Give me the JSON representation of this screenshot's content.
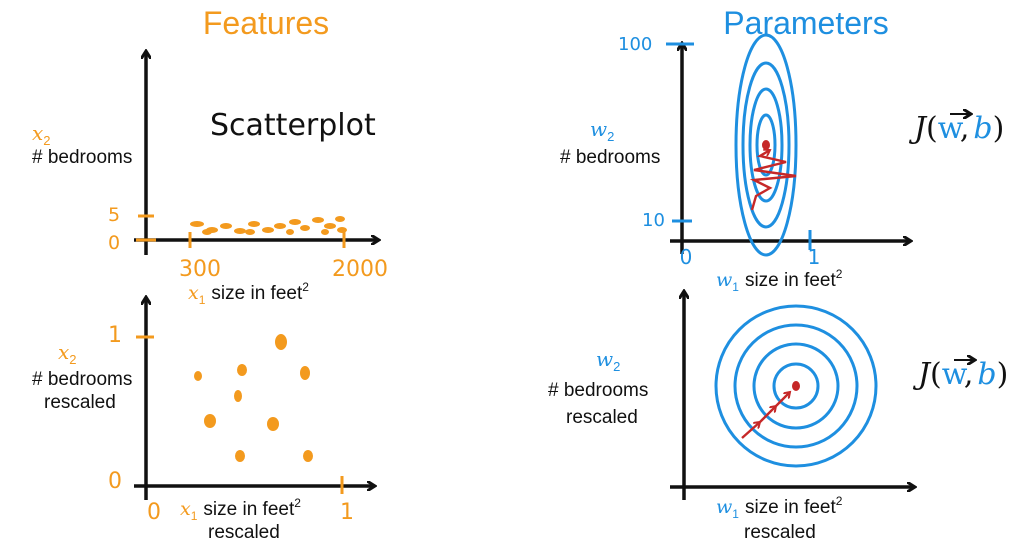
{
  "colors": {
    "orange": "#F39A1E",
    "blue": "#1E8FE0",
    "red": "#C62828",
    "ink": "#111111"
  },
  "headings": {
    "features": "Features",
    "parameters": "Parameters"
  },
  "scatter_note": "Scatterplot",
  "features_top": {
    "y_var": "x",
    "y_sub": "2",
    "y_label": "# bedrooms",
    "y_ticks": [
      "5",
      "0"
    ],
    "x_ticks": [
      "300",
      "2000"
    ],
    "x_var": "x",
    "x_sub": "1",
    "x_label": "size in feet",
    "x_sup": "2"
  },
  "features_bottom": {
    "y_var": "x",
    "y_sub": "2",
    "y_label": "# bedrooms",
    "y_label2": "rescaled",
    "y_ticks": [
      "1",
      "0"
    ],
    "x_ticks": [
      "0",
      "1"
    ],
    "x_var": "x",
    "x_sub": "1",
    "x_label": "size in feet",
    "x_sup": "2",
    "x_label2": "rescaled"
  },
  "params_top": {
    "y_var": "w",
    "y_sub": "2",
    "y_label": "# bedrooms",
    "y_ticks": [
      "100",
      "10"
    ],
    "x_ticks": [
      "0",
      "1"
    ],
    "x_var": "w",
    "x_sub": "1",
    "x_label": "size in feet",
    "x_sup": "2",
    "cost": {
      "J": "J",
      "open": "(",
      "w": "w",
      "comma": ",",
      "b": "b",
      "close": ")"
    }
  },
  "params_bottom": {
    "y_var": "w",
    "y_sub": "2",
    "y_label": "# bedrooms",
    "y_label2": "rescaled",
    "x_var": "w",
    "x_sub": "1",
    "x_label": "size in feet",
    "x_sup": "2",
    "x_label2": "rescaled",
    "cost": {
      "J": "J",
      "open": "(",
      "w": "w",
      "comma": ",",
      "b": "b",
      "close": ")"
    }
  }
}
